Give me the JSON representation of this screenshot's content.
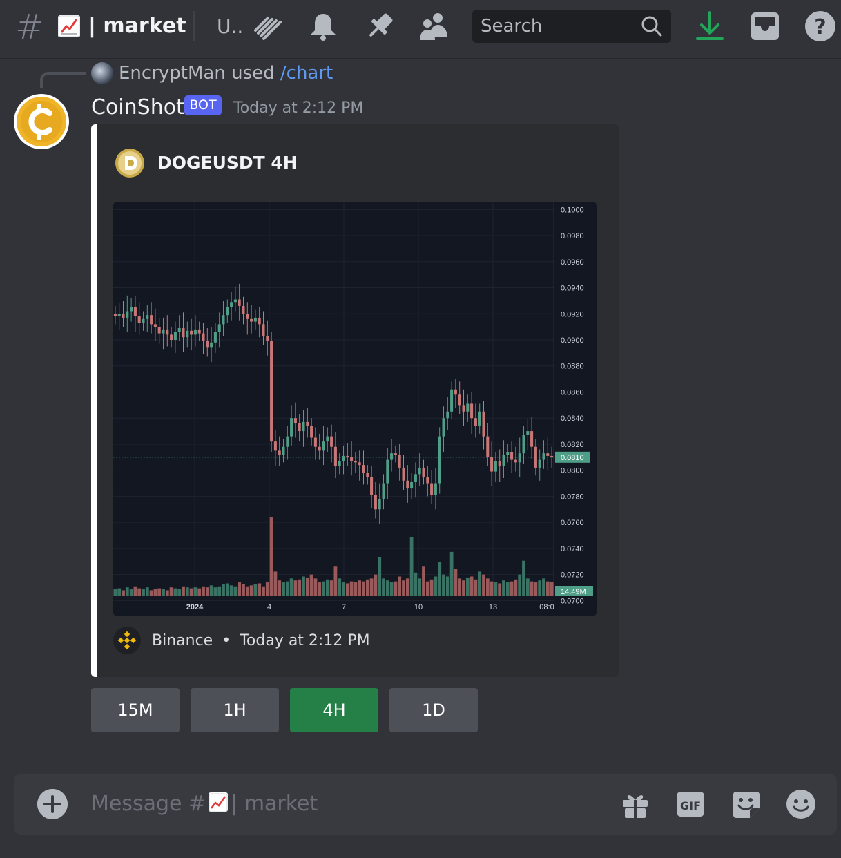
{
  "header": {
    "hash_symbol": "#",
    "channel_emoji": "chart-increasing-emoji",
    "channel_name": "| market",
    "topic_truncated": "U..",
    "search_placeholder": "Search"
  },
  "message": {
    "reply": {
      "user": "EncryptMan",
      "used_text": "used",
      "command": "/chart"
    },
    "author": "CoinShot",
    "bot_tag": "BOT",
    "timestamp": "Today at 2:12 PM",
    "embed": {
      "title": "DOGEUSDT 4H",
      "footer_source": "Binance",
      "footer_separator": "•",
      "footer_time": "Today at 2:12 PM",
      "border_color": "#ffffff"
    }
  },
  "buttons": [
    {
      "label": "15M",
      "active": false
    },
    {
      "label": "1H",
      "active": false
    },
    {
      "label": "4H",
      "active": true
    },
    {
      "label": "1D",
      "active": false
    }
  ],
  "composer": {
    "placeholder_prefix": "Message #",
    "placeholder_suffix": "| market"
  },
  "colors": {
    "accent": "#5865f2",
    "active_button": "#248046",
    "download_icon": "#23a55a",
    "candle_up": "#4f9e87",
    "candle_down": "#c97676",
    "chart_bg": "#131722"
  },
  "chart_data": {
    "type": "candlestick",
    "symbol": "DOGEUSDT",
    "timeframe": "4H",
    "y_ticks": [
      "0.1000",
      "0.0980",
      "0.0960",
      "0.0940",
      "0.0920",
      "0.0900",
      "0.0880",
      "0.0860",
      "0.0840",
      "0.0820",
      "0.0800",
      "0.0780",
      "0.0760",
      "0.0740",
      "0.0720",
      "0.0700"
    ],
    "ylim": [
      0.0688,
      0.1006
    ],
    "x_ticks": [
      "2024",
      "4",
      "7",
      "10",
      "13",
      "08:0"
    ],
    "last_price": "0.0810",
    "last_volume": "14.49M",
    "close_series": [
      0.0918,
      0.092,
      0.0917,
      0.0922,
      0.0925,
      0.0918,
      0.0913,
      0.0916,
      0.0919,
      0.0912,
      0.091,
      0.0905,
      0.0908,
      0.0904,
      0.09,
      0.0906,
      0.0909,
      0.0902,
      0.0907,
      0.0904,
      0.0908,
      0.0905,
      0.0899,
      0.0894,
      0.0898,
      0.0906,
      0.0912,
      0.0919,
      0.0925,
      0.0929,
      0.0931,
      0.0926,
      0.092,
      0.0916,
      0.0914,
      0.0917,
      0.0912,
      0.0903,
      0.0899,
      0.0822,
      0.0815,
      0.0812,
      0.0818,
      0.0826,
      0.084,
      0.0836,
      0.083,
      0.0837,
      0.0834,
      0.0825,
      0.0818,
      0.0815,
      0.0822,
      0.0826,
      0.0818,
      0.0803,
      0.0807,
      0.0811,
      0.081,
      0.0807,
      0.0806,
      0.0804,
      0.0798,
      0.0795,
      0.0781,
      0.077,
      0.0778,
      0.079,
      0.0808,
      0.0813,
      0.0812,
      0.0802,
      0.0792,
      0.0786,
      0.0791,
      0.0797,
      0.0802,
      0.0795,
      0.079,
      0.0781,
      0.079,
      0.0826,
      0.084,
      0.0845,
      0.0862,
      0.0858,
      0.085,
      0.0845,
      0.0851,
      0.084,
      0.0834,
      0.0845,
      0.0826,
      0.081,
      0.0799,
      0.0807,
      0.0803,
      0.0812,
      0.0814,
      0.0808,
      0.0806,
      0.0813,
      0.0827,
      0.083,
      0.0818,
      0.0802,
      0.0808,
      0.0813,
      0.0811,
      0.081
    ],
    "volume_series_m": [
      7,
      8,
      6,
      9,
      7,
      10,
      8,
      7,
      9,
      6,
      7,
      8,
      7,
      6,
      9,
      8,
      7,
      10,
      9,
      8,
      9,
      8,
      10,
      9,
      11,
      9,
      10,
      12,
      13,
      11,
      10,
      14,
      12,
      10,
      11,
      12,
      13,
      10,
      14,
      80,
      25,
      16,
      14,
      15,
      18,
      16,
      17,
      20,
      19,
      22,
      18,
      14,
      15,
      17,
      16,
      30,
      18,
      14,
      13,
      15,
      14,
      16,
      15,
      17,
      18,
      22,
      40,
      18,
      16,
      14,
      15,
      20,
      16,
      18,
      60,
      24,
      18,
      30,
      15,
      17,
      20,
      35,
      22,
      20,
      45,
      28,
      18,
      16,
      19,
      20,
      17,
      25,
      22,
      18,
      15,
      14,
      13,
      16,
      14,
      15,
      17,
      22,
      36,
      18,
      15,
      14,
      16,
      18,
      15,
      14.49
    ]
  }
}
